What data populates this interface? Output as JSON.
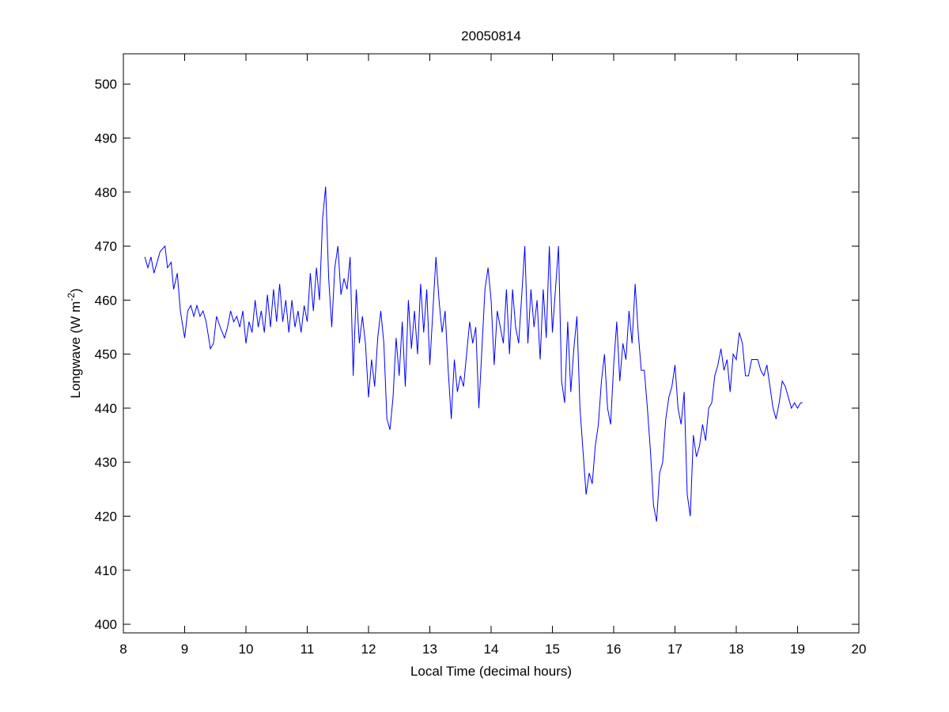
{
  "chart_data": {
    "type": "line",
    "title": "20050814",
    "xlabel": "Local Time (decimal hours)",
    "ylabel": {
      "text": "Longwave (W m",
      "superscript": "-2",
      "suffix": ")"
    },
    "color": "#0000ff",
    "xlim": [
      8,
      20
    ],
    "xticks": [
      8,
      9,
      10,
      11,
      12,
      13,
      14,
      15,
      16,
      17,
      18,
      19,
      20
    ],
    "ylim": [
      398.4,
      505.6
    ],
    "yticks": [
      400,
      410,
      420,
      430,
      440,
      450,
      460,
      470,
      480,
      490,
      500
    ],
    "grid": false,
    "x": [
      8.35,
      8.4,
      8.45,
      8.5,
      8.55,
      8.6,
      8.68,
      8.72,
      8.78,
      8.82,
      8.88,
      8.93,
      9.0,
      9.05,
      9.1,
      9.15,
      9.2,
      9.25,
      9.3,
      9.35,
      9.42,
      9.47,
      9.52,
      9.58,
      9.65,
      9.7,
      9.75,
      9.8,
      9.85,
      9.9,
      9.95,
      10.0,
      10.05,
      10.1,
      10.15,
      10.2,
      10.25,
      10.3,
      10.35,
      10.4,
      10.45,
      10.5,
      10.55,
      10.6,
      10.65,
      10.7,
      10.75,
      10.8,
      10.85,
      10.9,
      10.95,
      11.0,
      11.05,
      11.1,
      11.15,
      11.2,
      11.25,
      11.3,
      11.35,
      11.4,
      11.45,
      11.5,
      11.55,
      11.6,
      11.65,
      11.7,
      11.75,
      11.8,
      11.85,
      11.9,
      11.95,
      12.0,
      12.05,
      12.1,
      12.15,
      12.2,
      12.25,
      12.3,
      12.35,
      12.4,
      12.45,
      12.5,
      12.55,
      12.6,
      12.65,
      12.7,
      12.75,
      12.8,
      12.85,
      12.9,
      12.95,
      13.0,
      13.05,
      13.1,
      13.15,
      13.2,
      13.25,
      13.3,
      13.35,
      13.4,
      13.45,
      13.5,
      13.55,
      13.6,
      13.65,
      13.7,
      13.75,
      13.8,
      13.85,
      13.9,
      13.95,
      14.0,
      14.05,
      14.1,
      14.15,
      14.2,
      14.25,
      14.3,
      14.35,
      14.4,
      14.45,
      14.5,
      14.55,
      14.6,
      14.65,
      14.7,
      14.75,
      14.8,
      14.85,
      14.9,
      14.95,
      15.0,
      15.05,
      15.1,
      15.15,
      15.2,
      15.25,
      15.3,
      15.35,
      15.4,
      15.45,
      15.5,
      15.55,
      15.6,
      15.65,
      15.7,
      15.75,
      15.8,
      15.85,
      15.9,
      15.95,
      16.0,
      16.05,
      16.1,
      16.15,
      16.2,
      16.25,
      16.3,
      16.35,
      16.4,
      16.45,
      16.5,
      16.55,
      16.6,
      16.65,
      16.7,
      16.75,
      16.8,
      16.85,
      16.9,
      16.95,
      17.0,
      17.05,
      17.1,
      17.15,
      17.2,
      17.25,
      17.3,
      17.35,
      17.4,
      17.45,
      17.5,
      17.55,
      17.6,
      17.65,
      17.7,
      17.75,
      17.8,
      17.85,
      17.9,
      17.95,
      18.0,
      18.05,
      18.1,
      18.15,
      18.2,
      18.25,
      18.3,
      18.35,
      18.4,
      18.45,
      18.5,
      18.55,
      18.6,
      18.65,
      18.7,
      18.75,
      18.8,
      18.85,
      18.9,
      18.95,
      19.0,
      19.05,
      19.08
    ],
    "values": [
      468,
      466,
      468,
      465,
      467,
      469,
      470,
      466,
      467,
      462,
      465,
      458,
      453,
      458,
      459,
      457,
      459,
      457,
      458,
      456,
      451,
      452,
      457,
      455,
      453,
      455,
      458,
      456,
      457,
      455,
      458,
      452,
      456,
      454,
      460,
      455,
      458,
      454,
      461,
      455,
      462,
      456,
      463,
      456,
      460,
      454,
      460,
      455,
      458,
      454,
      459,
      456,
      465,
      458,
      466,
      460,
      475,
      481,
      464,
      455,
      466,
      470,
      461,
      464,
      462,
      468,
      446,
      462,
      452,
      457,
      452,
      442,
      449,
      444,
      453,
      458,
      452,
      438,
      436,
      442,
      453,
      446,
      456,
      444,
      460,
      451,
      458,
      450,
      463,
      454,
      462,
      448,
      458,
      468,
      460,
      454,
      458,
      447,
      438,
      449,
      443,
      446,
      444,
      450,
      456,
      452,
      455,
      440,
      451,
      462,
      466,
      460,
      448,
      458,
      455,
      452,
      462,
      450,
      462,
      455,
      452,
      461,
      470,
      452,
      462,
      455,
      460,
      449,
      462,
      453,
      470,
      454,
      462,
      470,
      445,
      441,
      456,
      443,
      451,
      457,
      440,
      432,
      424,
      428,
      426,
      433,
      437,
      445,
      450,
      440,
      437,
      448,
      456,
      445,
      452,
      449,
      458,
      452,
      463,
      454,
      447,
      447,
      440,
      432,
      422,
      419,
      428,
      430,
      438,
      442,
      444,
      448,
      440,
      437,
      443,
      424,
      420,
      435,
      431,
      433,
      437,
      434,
      440,
      441,
      446,
      448,
      451,
      447,
      449,
      443,
      450,
      449,
      454,
      452,
      446,
      446,
      449,
      449,
      449,
      447,
      446,
      448,
      444,
      440,
      438,
      441,
      445,
      444,
      442,
      440,
      441,
      440,
      441,
      441
    ]
  }
}
